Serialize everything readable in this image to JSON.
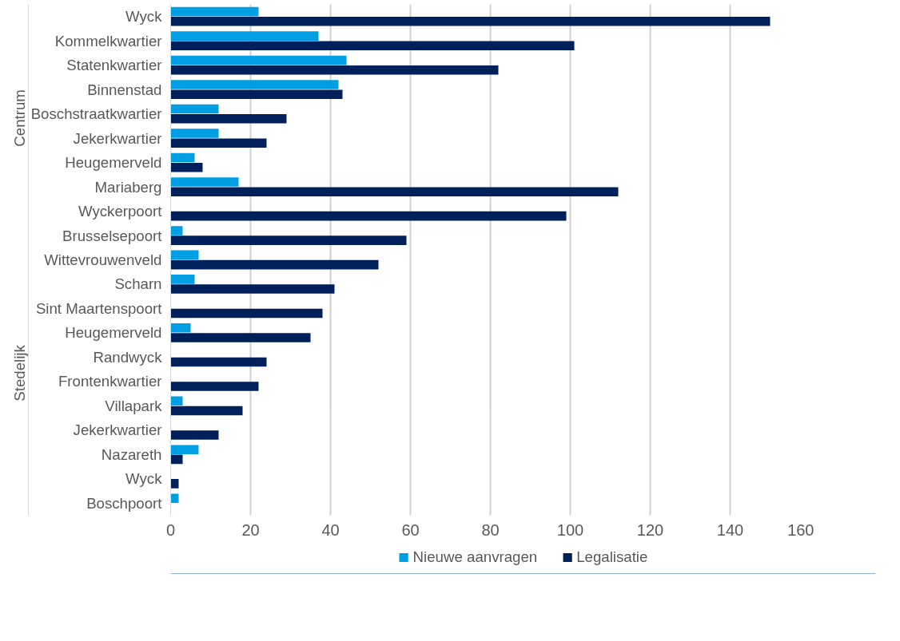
{
  "chart_data": {
    "type": "bar",
    "orientation": "horizontal",
    "categories": [
      "Wyck",
      "Kommelkwartier",
      "Statenkwartier",
      "Binnenstad",
      "Boschstraatkwartier",
      "Jekerkwartier",
      "Heugemerveld",
      "Mariaberg",
      "Wyckerpoort",
      "Brusselsepoort",
      "Wittevrouwenveld",
      "Scharn",
      "Sint Maartenspoort",
      "Heugemerveld",
      "Randwyck",
      "Frontenkwartier",
      "Villapark",
      "Jekerkwartier",
      "Nazareth",
      "Wyck",
      "Boschpoort"
    ],
    "series": [
      {
        "name": "Nieuwe aanvragen",
        "color": "#009fe3",
        "values": [
          22,
          37,
          44,
          42,
          12,
          12,
          6,
          17,
          null,
          3,
          7,
          6,
          null,
          5,
          null,
          null,
          3,
          null,
          7,
          null,
          2
        ]
      },
      {
        "name": "Legalisatie",
        "color": "#00205b",
        "values": [
          150,
          101,
          82,
          43,
          29,
          24,
          8,
          112,
          99,
          59,
          52,
          41,
          38,
          35,
          24,
          22,
          18,
          12,
          3,
          2,
          null
        ]
      }
    ],
    "annotations": [
      "Centrum",
      "Stedelijk"
    ],
    "xlim": [
      0,
      160
    ],
    "xticks": [
      0,
      20,
      40,
      60,
      80,
      100,
      120,
      140,
      160
    ],
    "grid": "x",
    "legend": "bottom"
  }
}
